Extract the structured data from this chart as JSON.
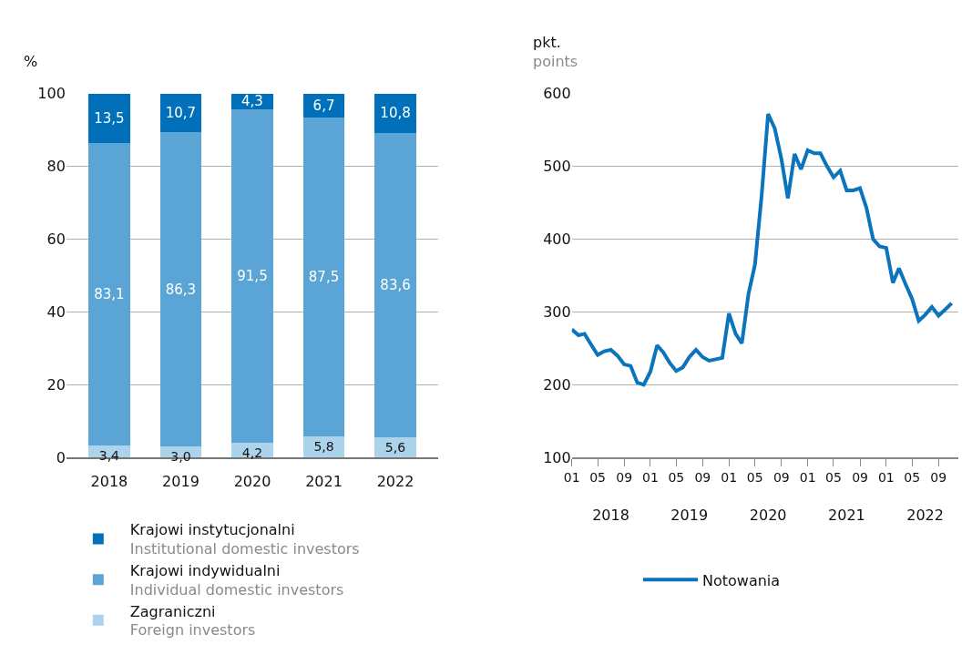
{
  "chart_data": [
    {
      "type": "bar",
      "stacked": true,
      "ylabel": "%",
      "categories": [
        "2018",
        "2019",
        "2020",
        "2021",
        "2022"
      ],
      "ylim": [
        0,
        100
      ],
      "yticks": [
        0,
        20,
        40,
        60,
        80,
        100
      ],
      "grid": "y",
      "legend": "bottom",
      "series": [
        {
          "name": "Zagraniczni\nForeign investors",
          "color": "#acd3ec",
          "values": [
            3.4,
            3.0,
            4.2,
            5.8,
            5.6
          ],
          "value_labels": [
            "3,4",
            "3,0",
            "4,2",
            "5,8",
            "5,6"
          ]
        },
        {
          "name": "Krajowi indywidualni\nIndividual domestic investors",
          "color": "#5aa5d5",
          "values": [
            83.1,
            86.3,
            91.5,
            87.5,
            83.6
          ],
          "value_labels": [
            "83,1",
            "86,3",
            "91,5",
            "87,5",
            "83,6"
          ]
        },
        {
          "name": "Krajowi instytucjonalni\nInstitutional domestic investors",
          "color": "#0070bb",
          "values": [
            13.5,
            10.7,
            4.3,
            6.7,
            10.8
          ],
          "value_labels": [
            "13,5",
            "10,7",
            "4,3",
            "6,7",
            "10,8"
          ]
        }
      ]
    },
    {
      "type": "line",
      "ylabel": "pkt.\npoints",
      "ylim": [
        100,
        600
      ],
      "yticks": [
        100,
        200,
        300,
        400,
        500,
        600
      ],
      "grid": "y",
      "legend": "bottom",
      "marker": "none",
      "line_style": "solid",
      "xlim": [
        "2018-01",
        "2022-12"
      ],
      "xticks": [
        {
          "value": "2018-01",
          "label": "01"
        },
        {
          "value": "2018-05",
          "label": "05"
        },
        {
          "value": "2018-09",
          "label": "09"
        },
        {
          "value": "2019-01",
          "label": "01"
        },
        {
          "value": "2019-05",
          "label": "05"
        },
        {
          "value": "2019-09",
          "label": "09"
        },
        {
          "value": "2020-01",
          "label": "01"
        },
        {
          "value": "2020-05",
          "label": "05"
        },
        {
          "value": "2020-09",
          "label": "09"
        },
        {
          "value": "2021-01",
          "label": "01"
        },
        {
          "value": "2021-05",
          "label": "05"
        },
        {
          "value": "2021-09",
          "label": "09"
        },
        {
          "value": "2022-01",
          "label": "01"
        },
        {
          "value": "2022-05",
          "label": "05"
        },
        {
          "value": "2022-09",
          "label": "09"
        }
      ],
      "x2lim": [
        "2018-01",
        "2022-12"
      ],
      "x2ticks": [
        {
          "value": "2018-07",
          "label": "2018"
        },
        {
          "value": "2019-07",
          "label": "2019"
        },
        {
          "value": "2020-07",
          "label": "2020"
        },
        {
          "value": "2021-07",
          "label": "2021"
        },
        {
          "value": "2022-07",
          "label": "2022"
        }
      ],
      "x": [
        "2018-01",
        "2018-02",
        "2018-03",
        "2018-04",
        "2018-05",
        "2018-06",
        "2018-07",
        "2018-08",
        "2018-09",
        "2018-10",
        "2018-11",
        "2018-12",
        "2019-01",
        "2019-02",
        "2019-03",
        "2019-04",
        "2019-05",
        "2019-06",
        "2019-07",
        "2019-08",
        "2019-09",
        "2019-10",
        "2019-11",
        "2019-12",
        "2020-01",
        "2020-02",
        "2020-03",
        "2020-04",
        "2020-05",
        "2020-06",
        "2020-07",
        "2020-08",
        "2020-09",
        "2020-10",
        "2020-11",
        "2020-12",
        "2021-01",
        "2021-02",
        "2021-03",
        "2021-04",
        "2021-05",
        "2021-06",
        "2021-07",
        "2021-08",
        "2021-09",
        "2021-10",
        "2021-11",
        "2021-12",
        "2022-01",
        "2022-02",
        "2022-03",
        "2022-04",
        "2022-05",
        "2022-06",
        "2022-07",
        "2022-08",
        "2022-09",
        "2022-10",
        "2022-11"
      ],
      "series": [
        {
          "name": "Notowania",
          "color": "#0a74bc",
          "values": [
            276,
            268,
            270,
            255,
            241,
            246,
            248,
            240,
            228,
            226,
            203,
            200,
            218,
            254,
            245,
            230,
            219,
            224,
            238,
            248,
            238,
            233,
            235,
            237,
            298,
            270,
            257,
            325,
            365,
            460,
            572,
            552,
            510,
            456,
            517,
            496,
            522,
            518,
            518,
            500,
            485,
            494,
            467,
            467,
            470,
            443,
            400,
            390,
            388,
            340,
            360,
            338,
            318,
            288,
            296,
            307,
            295,
            303,
            312
          ]
        }
      ]
    }
  ]
}
